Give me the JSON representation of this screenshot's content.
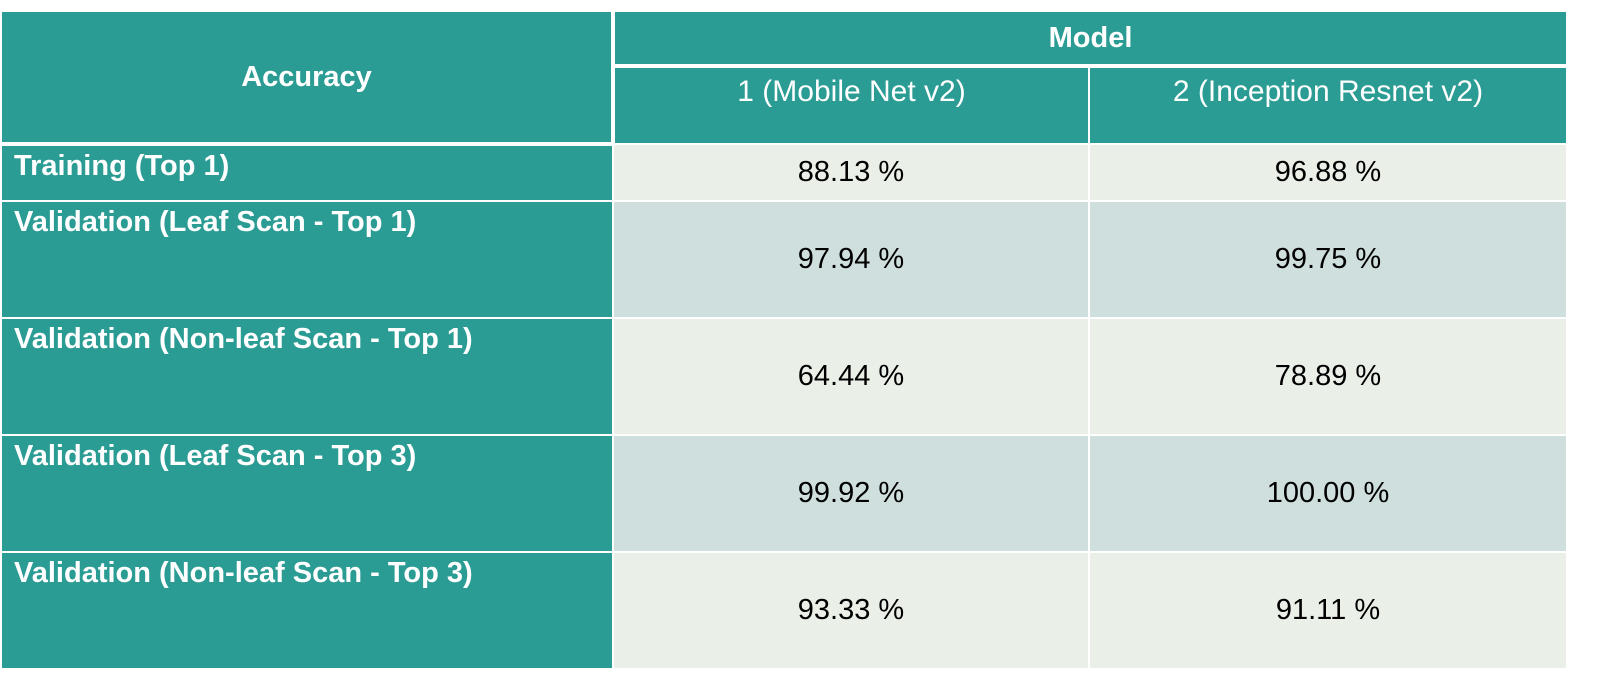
{
  "table": {
    "corner_label": "Accuracy",
    "group_label": "Model",
    "columns": [
      "1 (Mobile Net v2)",
      "2 (Inception Resnet v2)"
    ],
    "rows": [
      {
        "label": "Training (Top 1)",
        "values": [
          "88.13 %",
          "96.88 %"
        ]
      },
      {
        "label": "Validation (Leaf Scan - Top 1)",
        "values": [
          "97.94 %",
          "99.75 %"
        ]
      },
      {
        "label": "Validation (Non-leaf Scan - Top 1)",
        "values": [
          "64.44 %",
          "78.89 %"
        ]
      },
      {
        "label": "Validation (Leaf Scan - Top 3)",
        "values": [
          "99.92 %",
          "100.00 %"
        ]
      },
      {
        "label": "Validation (Non-leaf Scan - Top 3)",
        "values": [
          "93.33 %",
          "91.11 %"
        ]
      }
    ]
  },
  "colors": {
    "header_teal": "#2b9c94",
    "row_light": "#eaefe8",
    "row_banded": "#cfdfdd"
  }
}
